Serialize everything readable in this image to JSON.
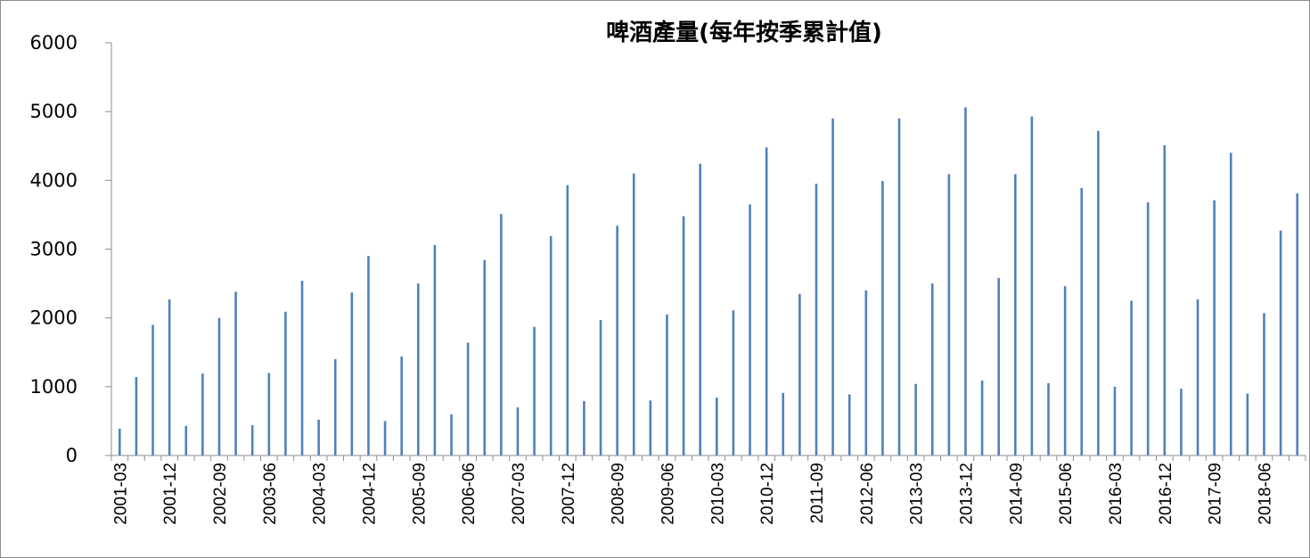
{
  "chart_data": {
    "type": "bar",
    "title": "啤酒產量(每年按季累計值)",
    "xlabel": "",
    "ylabel": "",
    "ylim": [
      0,
      6000
    ],
    "yticks": [
      0,
      1000,
      2000,
      3000,
      4000,
      5000,
      6000
    ],
    "grid": false,
    "legend": "none",
    "bar_color": "#4F81BD",
    "x_tick_labels": [
      "2001-03",
      "2001-12",
      "2002-09",
      "2003-06",
      "2004-03",
      "2004-12",
      "2005-09",
      "2006-06",
      "2007-03",
      "2007-12",
      "2008-09",
      "2009-06",
      "2010-03",
      "2010-12",
      "2011-09",
      "2012-06",
      "2013-03",
      "2013-12",
      "2014-09",
      "2015-06",
      "2016-03",
      "2016-12",
      "2017-09",
      "2018-06"
    ],
    "categories": [
      "2001-03",
      "2001-06",
      "2001-09",
      "2001-12",
      "2002-03",
      "2002-06",
      "2002-09",
      "2002-12",
      "2003-03",
      "2003-06",
      "2003-09",
      "2003-12",
      "2004-03",
      "2004-06",
      "2004-09",
      "2004-12",
      "2005-03",
      "2005-06",
      "2005-09",
      "2005-12",
      "2006-03",
      "2006-06",
      "2006-09",
      "2006-12",
      "2007-03",
      "2007-06",
      "2007-09",
      "2007-12",
      "2008-03",
      "2008-06",
      "2008-09",
      "2008-12",
      "2009-03",
      "2009-06",
      "2009-09",
      "2009-12",
      "2010-03",
      "2010-06",
      "2010-09",
      "2010-12",
      "2011-03",
      "2011-06",
      "2011-09",
      "2011-12",
      "2012-03",
      "2012-06",
      "2012-09",
      "2012-12",
      "2013-03",
      "2013-06",
      "2013-09",
      "2013-12",
      "2014-03",
      "2014-06",
      "2014-09",
      "2014-12",
      "2015-03",
      "2015-06",
      "2015-09",
      "2015-12",
      "2016-03",
      "2016-06",
      "2016-09",
      "2016-12",
      "2017-03",
      "2017-06",
      "2017-09",
      "2017-12",
      "2018-03",
      "2018-06",
      "2018-09",
      "2018-12"
    ],
    "values": [
      390,
      1140,
      1900,
      2270,
      430,
      1190,
      2000,
      2380,
      440,
      1200,
      2090,
      2540,
      520,
      1400,
      2370,
      2900,
      500,
      1440,
      2500,
      3060,
      600,
      1640,
      2840,
      3510,
      700,
      1870,
      3190,
      3930,
      790,
      1970,
      3340,
      4100,
      800,
      2050,
      3480,
      4240,
      840,
      2110,
      3650,
      4480,
      910,
      2350,
      3950,
      4900,
      890,
      2400,
      3990,
      4900,
      1040,
      2500,
      4090,
      5060,
      1090,
      2580,
      4090,
      4930,
      1050,
      2460,
      3890,
      4720,
      1000,
      2250,
      3680,
      4510,
      970,
      2270,
      3710,
      4400,
      900,
      2070,
      3270,
      3810
    ]
  }
}
